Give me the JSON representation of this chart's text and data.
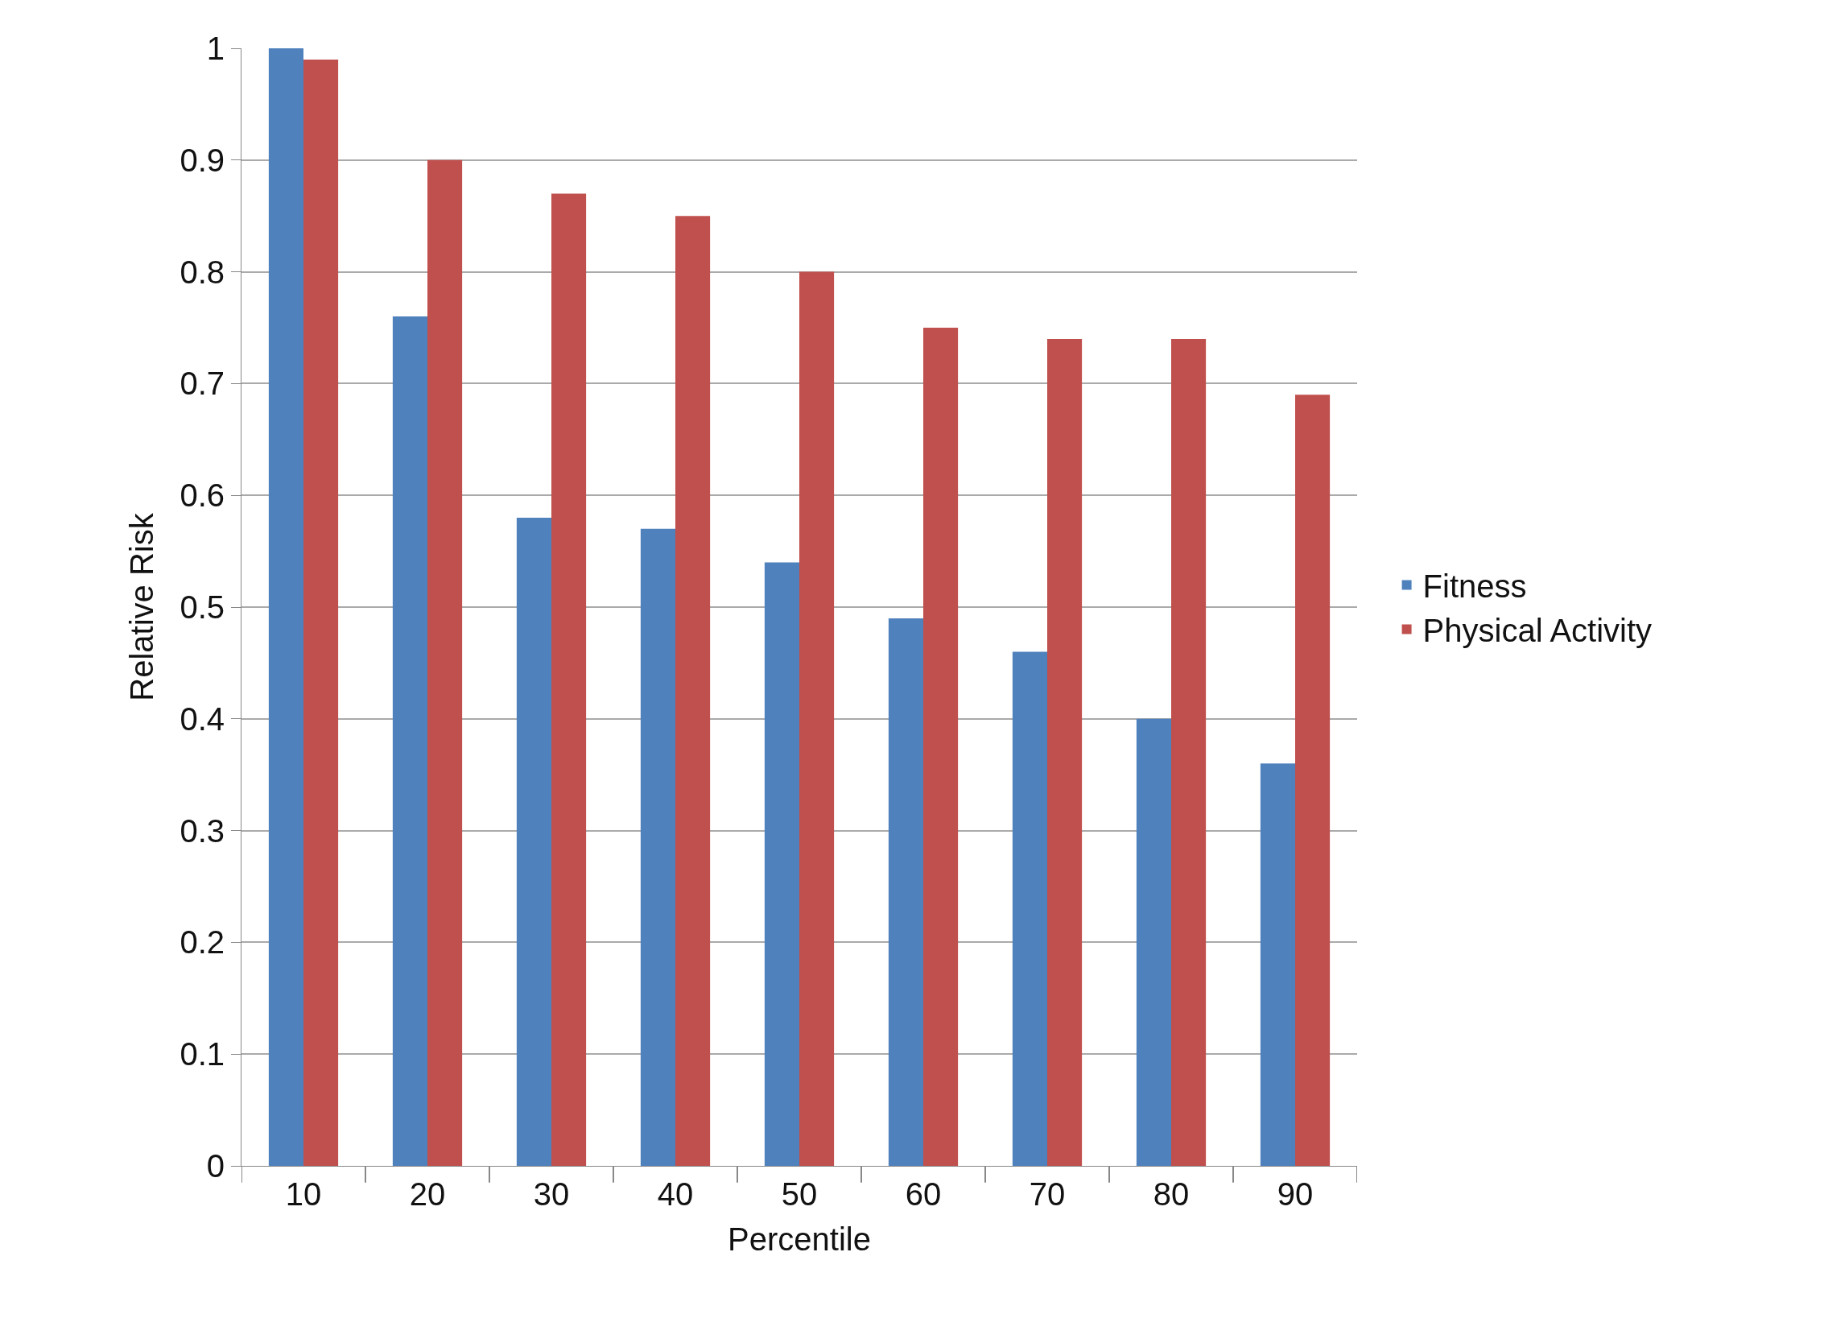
{
  "chart_data": {
    "type": "bar",
    "xlabel": "Percentile",
    "ylabel": "Relative Risk",
    "categories": [
      "10",
      "20",
      "30",
      "40",
      "50",
      "60",
      "70",
      "80",
      "90"
    ],
    "series": [
      {
        "name": "Fitness",
        "color": "#4f81bd",
        "values": [
          1.0,
          0.76,
          0.58,
          0.57,
          0.54,
          0.49,
          0.46,
          0.4,
          0.36
        ]
      },
      {
        "name": "Physical Activity",
        "color": "#c0504d",
        "values": [
          0.99,
          0.9,
          0.87,
          0.85,
          0.8,
          0.75,
          0.74,
          0.74,
          0.69
        ]
      }
    ],
    "ylim": [
      0,
      1
    ],
    "yticks": [
      0,
      0.1,
      0.2,
      0.3,
      0.4,
      0.5,
      0.6,
      0.7,
      0.8,
      0.9,
      1
    ],
    "grid": "y",
    "legend": "right"
  }
}
